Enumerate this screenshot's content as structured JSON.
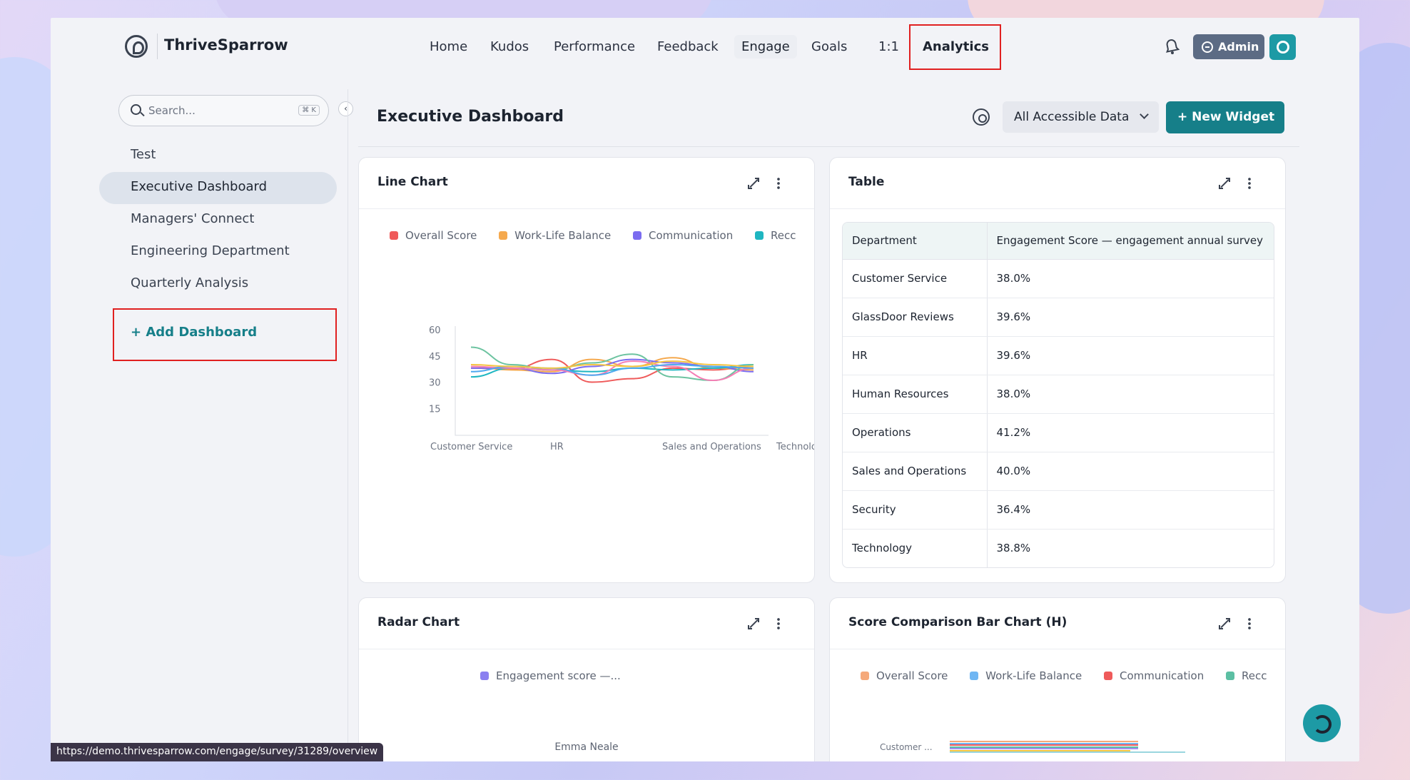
{
  "brand": {
    "name": "ThriveSparrow"
  },
  "nav": {
    "items": [
      {
        "label": "Home"
      },
      {
        "label": "Kudos"
      },
      {
        "label": "Performance"
      },
      {
        "label": "Feedback"
      },
      {
        "label": "Engage"
      },
      {
        "label": "Goals"
      },
      {
        "label": "1:1"
      },
      {
        "label": "Analytics"
      }
    ],
    "admin_label": "Admin"
  },
  "sidebar": {
    "search_placeholder": "Search...",
    "search_shortcut": "⌘ K",
    "collapse_icon": "‹",
    "items": [
      {
        "label": "Test"
      },
      {
        "label": "Executive Dashboard"
      },
      {
        "label": "Managers' Connect"
      },
      {
        "label": "Engineering Department"
      },
      {
        "label": "Quarterly Analysis"
      }
    ],
    "add_label": "+ Add Dashboard"
  },
  "main": {
    "title": "Executive Dashboard",
    "filter_label": "All Accessible Data",
    "new_widget_label": "+ New Widget"
  },
  "line_card": {
    "title": "Line Chart",
    "legend": [
      {
        "label": "Overall Score",
        "color": "#ef5a5a"
      },
      {
        "label": "Work-Life Balance",
        "color": "#f5a94e"
      },
      {
        "label": "Communication",
        "color": "#7b6cf0"
      },
      {
        "label": "Recc",
        "color": "#1fb6c1"
      }
    ]
  },
  "chart_data": {
    "type": "line",
    "yticks": [
      "60",
      "45",
      "30",
      "15"
    ],
    "ylim": [
      0,
      60
    ],
    "x_labels": [
      "Customer Service",
      "HR",
      "Sales and Operations",
      "Technology"
    ],
    "series": [
      {
        "color": "#ef5a5a",
        "values": [
          38,
          37.5,
          43,
          30,
          32,
          38,
          37,
          39
        ]
      },
      {
        "color": "#f5a94e",
        "values": [
          39,
          37,
          36,
          43,
          39,
          44,
          38,
          37
        ]
      },
      {
        "color": "#7b6cf0",
        "values": [
          38,
          38,
          35,
          39,
          43,
          41,
          39,
          36
        ]
      },
      {
        "color": "#1fb6c1",
        "values": [
          33,
          38,
          37,
          36,
          38,
          37,
          38,
          40
        ]
      },
      {
        "color": "#6cc3a0",
        "values": [
          50,
          40,
          37,
          41,
          46,
          33,
          31,
          40
        ]
      },
      {
        "color": "#f57fb5",
        "values": [
          39,
          38,
          37,
          34,
          42,
          39,
          31,
          38
        ]
      },
      {
        "color": "#4ea8ef",
        "values": [
          36,
          39,
          38,
          34,
          38,
          40,
          39,
          38
        ]
      },
      {
        "color": "#f4c542",
        "values": [
          40,
          39,
          38,
          40,
          39,
          42,
          40,
          39
        ]
      }
    ]
  },
  "table_card": {
    "title": "Table",
    "columns": [
      "Department",
      "Engagement Score — engagement annual survey"
    ],
    "rows": [
      [
        "Customer Service",
        "38.0%"
      ],
      [
        "GlassDoor Reviews",
        "39.6%"
      ],
      [
        "HR",
        "39.6%"
      ],
      [
        "Human Resources",
        "38.0%"
      ],
      [
        "Operations",
        "41.2%"
      ],
      [
        "Sales and Operations",
        "40.0%"
      ],
      [
        "Security",
        "36.4%"
      ],
      [
        "Technology",
        "38.8%"
      ]
    ]
  },
  "radar_card": {
    "title": "Radar Chart",
    "legend_label": "Engagement score —...",
    "legend_color": "#8b80f0",
    "axis_label": "Emma Neale"
  },
  "bar_card": {
    "title": "Score Comparison Bar Chart (H)",
    "legend": [
      {
        "label": "Overall Score",
        "color": "#f5a97a"
      },
      {
        "label": "Work-Life Balance",
        "color": "#6fb6f3"
      },
      {
        "label": "Communication",
        "color": "#ef5a5a"
      },
      {
        "label": "Recc",
        "color": "#5cbfa3"
      }
    ],
    "category_label": "Customer ...",
    "bar_values": [
      48,
      48,
      48,
      48,
      48,
      46,
      60
    ],
    "bar_colors": [
      "#f5a97a",
      "#6fb6f3",
      "#ef5a5a",
      "#5cbfa3",
      "#a48ef0",
      "#f4c542",
      "#9ad6df"
    ]
  },
  "status_url": "https://demo.thrivesparrow.com/engage/survey/31289/overview"
}
